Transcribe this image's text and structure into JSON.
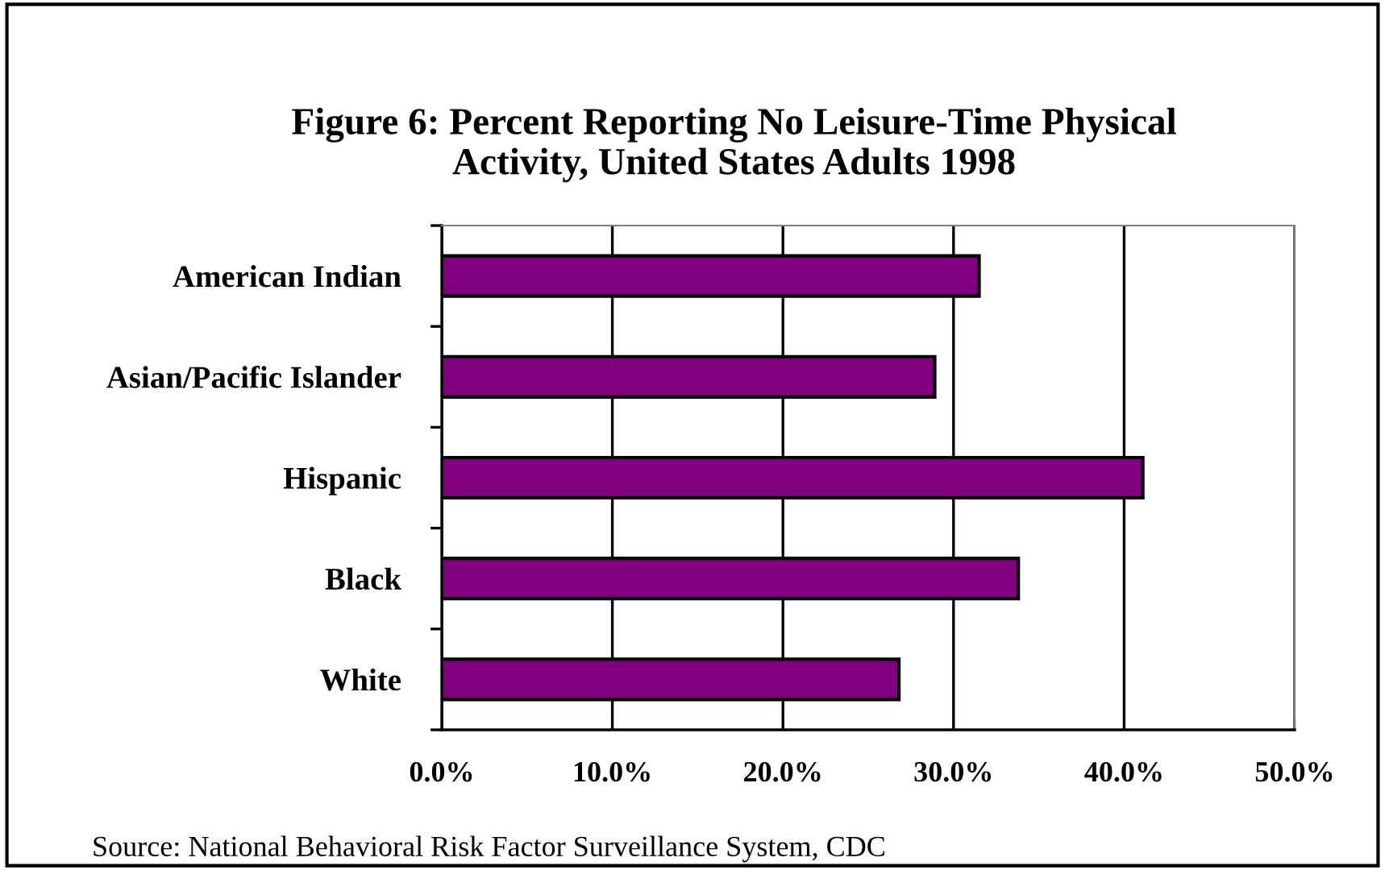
{
  "chart_data": {
    "type": "bar",
    "orientation": "horizontal",
    "title": "Figure 6: Percent Reporting No Leisure-Time Physical\nActivity, United States Adults 1998",
    "categories": [
      "American Indian",
      "Asian/Pacific Islander",
      "Hispanic",
      "Black",
      "White"
    ],
    "values": [
      31.5,
      28.9,
      41.1,
      33.8,
      26.8
    ],
    "color": "#800080",
    "xlim": [
      0,
      50
    ],
    "xticks": [
      {
        "value": 0,
        "label": "0.0%"
      },
      {
        "value": 10,
        "label": "10.0%"
      },
      {
        "value": 20,
        "label": "20.0%"
      },
      {
        "value": 30,
        "label": "30.0%"
      },
      {
        "value": 40,
        "label": "40.0%"
      },
      {
        "value": 50,
        "label": "50.0%"
      }
    ],
    "grid": "x",
    "legend": false,
    "annotations": [
      "Source: National Behavioral Risk Factor Surveillance System, CDC"
    ]
  }
}
